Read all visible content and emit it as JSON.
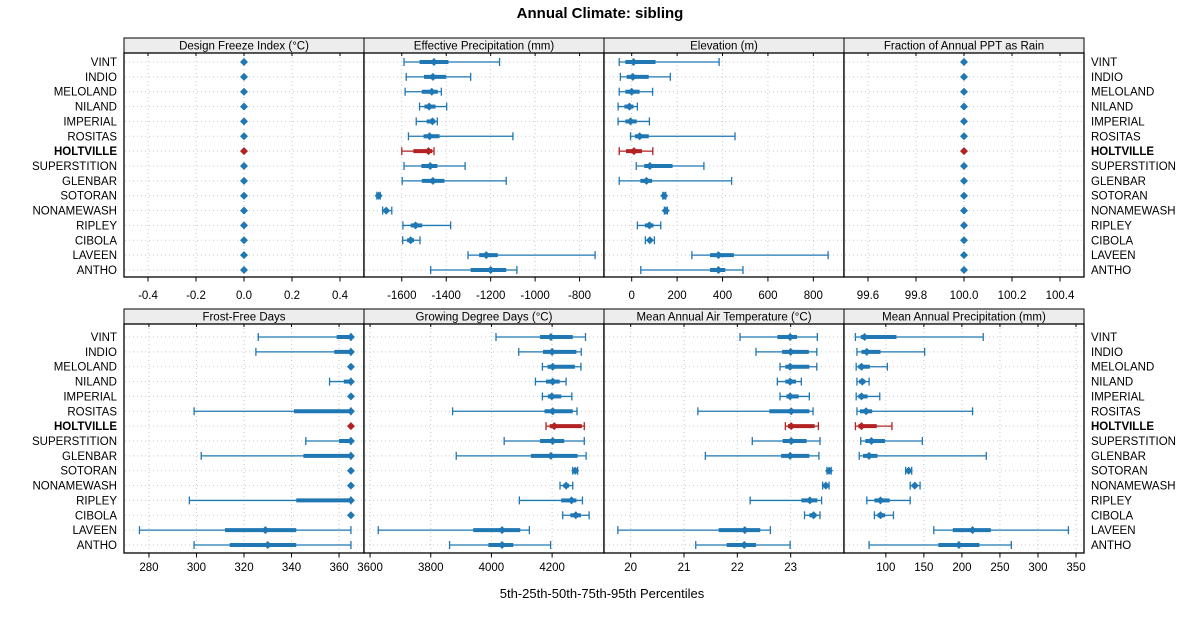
{
  "title": "Annual Climate: sibling",
  "caption": "5th-25th-50th-75th-95th Percentiles",
  "highlight_site": "HOLTVILLE",
  "percentile_labels": [
    "5th",
    "25th",
    "50th",
    "75th",
    "95th"
  ],
  "sites": [
    "VINT",
    "INDIO",
    "MELOLAND",
    "NILAND",
    "IMPERIAL",
    "ROSITAS",
    "HOLTVILLE",
    "SUPERSTITION",
    "GLENBAR",
    "SOTORAN",
    "NONAMEWASH",
    "RIPLEY",
    "CIBOLA",
    "LAVEEN",
    "ANTHO"
  ],
  "colors": {
    "series": "#1F77B4",
    "highlight": "#B22222",
    "strip_bg": "#EDEDED",
    "panel_border": "#000000",
    "grid": "#C9C9C9",
    "background": "#FFFFFF"
  },
  "chart_data": {
    "type": "trellis-dotplot",
    "layout": {
      "rows": 2,
      "cols": 4
    },
    "note": "values are [p5,p25,p50,p75,p95] per site, site order as in sites[]",
    "panels": [
      {
        "title": "Design Freeze Index (°C)",
        "xlim": [
          -0.5,
          0.5
        ],
        "ticks": [
          -0.4,
          -0.2,
          0.0,
          0.2,
          0.4
        ],
        "tick_labels": [
          "-0.4",
          "-0.2",
          "0.0",
          "0.2",
          "0.4"
        ],
        "values": [
          [
            0,
            0,
            0,
            0,
            0
          ],
          [
            0,
            0,
            0,
            0,
            0
          ],
          [
            0,
            0,
            0,
            0,
            0
          ],
          [
            0,
            0,
            0,
            0,
            0
          ],
          [
            0,
            0,
            0,
            0,
            0
          ],
          [
            0,
            0,
            0,
            0,
            0
          ],
          [
            0,
            0,
            0,
            0,
            0
          ],
          [
            0,
            0,
            0,
            0,
            0
          ],
          [
            0,
            0,
            0,
            0,
            0
          ],
          [
            0,
            0,
            0,
            0,
            0
          ],
          [
            0,
            0,
            0,
            0,
            0
          ],
          [
            0,
            0,
            0,
            0,
            0
          ],
          [
            0,
            0,
            0,
            0,
            0
          ],
          [
            0,
            0,
            0,
            0,
            0
          ],
          [
            0,
            0,
            0,
            0,
            0
          ]
        ]
      },
      {
        "title": "Effective Precipitation (mm)",
        "xlim": [
          -1770,
          -690
        ],
        "ticks": [
          -1600,
          -1400,
          -1200,
          -1000,
          -800
        ],
        "tick_labels": [
          "-1600",
          "-1400",
          "-1200",
          "-1000",
          "-800"
        ],
        "values": [
          [
            -1590,
            -1520,
            -1455,
            -1390,
            -1160
          ],
          [
            -1580,
            -1500,
            -1460,
            -1400,
            -1290
          ],
          [
            -1585,
            -1510,
            -1465,
            -1438,
            -1422
          ],
          [
            -1520,
            -1498,
            -1477,
            -1448,
            -1398
          ],
          [
            -1535,
            -1488,
            -1462,
            -1450,
            -1440
          ],
          [
            -1570,
            -1502,
            -1475,
            -1430,
            -1100
          ],
          [
            -1600,
            -1548,
            -1480,
            -1463,
            -1455
          ],
          [
            -1590,
            -1512,
            -1472,
            -1440,
            -1315
          ],
          [
            -1598,
            -1510,
            -1460,
            -1408,
            -1130
          ],
          [
            -1712,
            -1708,
            -1704,
            -1701,
            -1697
          ],
          [
            -1686,
            -1678,
            -1670,
            -1662,
            -1645
          ],
          [
            -1595,
            -1560,
            -1538,
            -1508,
            -1380
          ],
          [
            -1596,
            -1576,
            -1560,
            -1545,
            -1518
          ],
          [
            -1302,
            -1252,
            -1220,
            -1168,
            -730
          ],
          [
            -1470,
            -1290,
            -1200,
            -1130,
            -1082
          ]
        ]
      },
      {
        "title": "Elevation (m)",
        "xlim": [
          -122,
          935
        ],
        "ticks": [
          0,
          200,
          400,
          600,
          800
        ],
        "tick_labels": [
          "0",
          "200",
          "400",
          "600",
          "800"
        ],
        "values": [
          [
            -55,
            -28,
            8,
            105,
            385
          ],
          [
            -50,
            -22,
            5,
            75,
            170
          ],
          [
            -55,
            -28,
            0,
            35,
            92
          ],
          [
            -60,
            -32,
            -10,
            8,
            25
          ],
          [
            -60,
            -28,
            -5,
            22,
            78
          ],
          [
            -5,
            14,
            35,
            75,
            455
          ],
          [
            -55,
            -25,
            10,
            45,
            93
          ],
          [
            20,
            55,
            80,
            180,
            318
          ],
          [
            -55,
            38,
            65,
            90,
            440
          ],
          [
            137,
            140,
            143,
            146,
            150
          ],
          [
            144,
            147,
            150,
            153,
            157
          ],
          [
            25,
            58,
            78,
            96,
            128
          ],
          [
            60,
            72,
            80,
            88,
            100
          ],
          [
            265,
            345,
            382,
            450,
            865
          ],
          [
            40,
            345,
            382,
            412,
            490
          ]
        ]
      },
      {
        "title": "Fraction of Annual PPT as Rain",
        "xlim": [
          99.5,
          100.5
        ],
        "ticks": [
          99.6,
          99.8,
          100.0,
          100.2,
          100.4
        ],
        "tick_labels": [
          "99.6",
          "99.8",
          "100.0",
          "100.2",
          "100.4"
        ],
        "values": [
          [
            100,
            100,
            100,
            100,
            100
          ],
          [
            100,
            100,
            100,
            100,
            100
          ],
          [
            100,
            100,
            100,
            100,
            100
          ],
          [
            100,
            100,
            100,
            100,
            100
          ],
          [
            100,
            100,
            100,
            100,
            100
          ],
          [
            100,
            100,
            100,
            100,
            100
          ],
          [
            100,
            100,
            100,
            100,
            100
          ],
          [
            100,
            100,
            100,
            100,
            100
          ],
          [
            100,
            100,
            100,
            100,
            100
          ],
          [
            100,
            100,
            100,
            100,
            100
          ],
          [
            100,
            100,
            100,
            100,
            100
          ],
          [
            100,
            100,
            100,
            100,
            100
          ],
          [
            100,
            100,
            100,
            100,
            100
          ],
          [
            100,
            100,
            100,
            100,
            100
          ],
          [
            100,
            100,
            100,
            100,
            100
          ]
        ]
      },
      {
        "title": "Frost-Free Days",
        "xlim": [
          269.5,
          370.5
        ],
        "ticks": [
          280,
          300,
          320,
          340,
          360
        ],
        "tick_labels": [
          "280",
          "300",
          "320",
          "340",
          "360"
        ],
        "values": [
          [
            326,
            359,
            365,
            365,
            365
          ],
          [
            325,
            358,
            365,
            365,
            365
          ],
          [
            365,
            365,
            365,
            365,
            365
          ],
          [
            356,
            362,
            365,
            365,
            365
          ],
          [
            365,
            365,
            365,
            365,
            365
          ],
          [
            299,
            341,
            365,
            365,
            365
          ],
          [
            365,
            365,
            365,
            365,
            365
          ],
          [
            346,
            360,
            365,
            365,
            365
          ],
          [
            302,
            345,
            365,
            365,
            365
          ],
          [
            365,
            365,
            365,
            365,
            365
          ],
          [
            365,
            365,
            365,
            365,
            365
          ],
          [
            297,
            342,
            365,
            365,
            365
          ],
          [
            365,
            365,
            365,
            365,
            365
          ],
          [
            276,
            312,
            329,
            342,
            365
          ],
          [
            299,
            314,
            330,
            342,
            365
          ]
        ]
      },
      {
        "title": "Growing Degree Days (°C)",
        "xlim": [
          3580,
          4371
        ],
        "ticks": [
          3600,
          3800,
          4000,
          4200
        ],
        "tick_labels": [
          "3600",
          "3800",
          "4000",
          "4200"
        ],
        "values": [
          [
            4015,
            4160,
            4196,
            4268,
            4310
          ],
          [
            4090,
            4170,
            4200,
            4280,
            4296
          ],
          [
            4168,
            4185,
            4202,
            4275,
            4295
          ],
          [
            4145,
            4180,
            4202,
            4225,
            4246
          ],
          [
            4168,
            4186,
            4199,
            4230,
            4265
          ],
          [
            3872,
            4175,
            4202,
            4268,
            4282
          ],
          [
            4180,
            4192,
            4207,
            4298,
            4306
          ],
          [
            4042,
            4160,
            4202,
            4240,
            4306
          ],
          [
            3884,
            4130,
            4196,
            4284,
            4312
          ],
          [
            4268,
            4272,
            4276,
            4280,
            4284
          ],
          [
            4226,
            4238,
            4246,
            4256,
            4268
          ],
          [
            4092,
            4230,
            4264,
            4280,
            4300
          ],
          [
            4235,
            4260,
            4278,
            4295,
            4322
          ],
          [
            3627,
            3940,
            4035,
            4095,
            4125
          ],
          [
            3862,
            3990,
            4035,
            4072,
            4195
          ]
        ]
      },
      {
        "title": "Mean Annual Air Temperature (°C)",
        "xlim": [
          19.5,
          24.0
        ],
        "ticks": [
          20,
          21,
          22,
          23
        ],
        "tick_labels": [
          "20",
          "21",
          "22",
          "23"
        ],
        "values": [
          [
            22.05,
            22.75,
            22.99,
            23.12,
            23.5
          ],
          [
            22.35,
            22.84,
            23.0,
            23.34,
            23.49
          ],
          [
            22.8,
            22.9,
            22.99,
            23.35,
            23.49
          ],
          [
            22.75,
            22.9,
            22.99,
            23.1,
            23.2
          ],
          [
            22.8,
            22.92,
            22.99,
            23.15,
            23.35
          ],
          [
            21.26,
            22.6,
            23.01,
            23.35,
            23.42
          ],
          [
            22.9,
            22.95,
            23.01,
            23.45,
            23.52
          ],
          [
            22.28,
            22.85,
            23.01,
            23.3,
            23.55
          ],
          [
            21.4,
            22.82,
            22.99,
            23.35,
            23.53
          ],
          [
            23.68,
            23.7,
            23.72,
            23.74,
            23.76
          ],
          [
            23.6,
            23.63,
            23.66,
            23.69,
            23.72
          ],
          [
            22.24,
            23.2,
            23.36,
            23.5,
            23.58
          ],
          [
            23.26,
            23.35,
            23.43,
            23.48,
            23.55
          ],
          [
            19.76,
            21.65,
            22.14,
            22.43,
            22.62
          ],
          [
            21.22,
            21.8,
            22.13,
            22.35,
            22.99
          ]
        ]
      },
      {
        "title": "Mean Annual Precipitation (mm)",
        "xlim": [
          45,
          360.5
        ],
        "ticks": [
          100,
          150,
          200,
          250,
          300,
          350
        ],
        "tick_labels": [
          "100",
          "150",
          "200",
          "250",
          "300",
          "350"
        ],
        "values": [
          [
            60,
            67,
            72,
            114,
            228
          ],
          [
            62,
            68,
            75,
            93,
            151
          ],
          [
            61,
            64,
            68,
            79,
            102
          ],
          [
            62,
            65,
            69,
            73,
            78
          ],
          [
            61,
            64,
            68,
            76,
            92
          ],
          [
            62,
            66,
            74,
            82,
            214
          ],
          [
            60,
            64,
            68,
            88,
            108
          ],
          [
            67,
            73,
            81,
            99,
            148
          ],
          [
            65,
            70,
            78,
            89,
            232
          ],
          [
            126,
            128,
            130,
            132,
            134
          ],
          [
            132,
            135,
            138,
            141,
            145
          ],
          [
            75,
            85,
            93,
            105,
            132
          ],
          [
            85,
            89,
            93,
            99,
            110
          ],
          [
            163,
            188,
            214,
            238,
            340
          ],
          [
            78,
            169,
            196,
            223,
            265
          ]
        ]
      }
    ]
  }
}
